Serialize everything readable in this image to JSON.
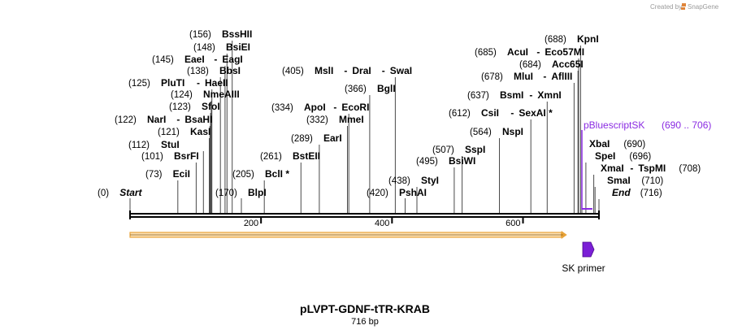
{
  "plasmid": {
    "name": "pLVPT-GDNF-tTR-KRAB",
    "length_label": "716 bp",
    "length": 716
  },
  "credit": {
    "text": "Created by",
    "brand": "SnapGene"
  },
  "colors": {
    "feature": "#8a2be2",
    "primer": "#7b1fd6",
    "orf": "#e8a33a",
    "line": "#000000"
  },
  "ticks": [
    {
      "pos": 200,
      "label": "200"
    },
    {
      "pos": 400,
      "label": "400"
    },
    {
      "pos": 600,
      "label": "600"
    }
  ],
  "enzymes": [
    {
      "pos": 156,
      "pos_label": "(156)",
      "names": [
        "BssHII"
      ]
    },
    {
      "pos": 148,
      "pos_label": "(148)",
      "names": [
        "BsiEI"
      ]
    },
    {
      "pos": 145,
      "pos_label": "(145)",
      "names": [
        "EaeI",
        "EagI"
      ]
    },
    {
      "pos": 138,
      "pos_label": "(138)",
      "names": [
        "BbsI"
      ]
    },
    {
      "pos": 125,
      "pos_label": "(125)",
      "names": [
        "PluTI",
        "HaeII"
      ]
    },
    {
      "pos": 124,
      "pos_label": "(124)",
      "names": [
        "NmeAIII"
      ]
    },
    {
      "pos": 123,
      "pos_label": "(123)",
      "names": [
        "SfoI"
      ]
    },
    {
      "pos": 122,
      "pos_label": "(122)",
      "names": [
        "NarI",
        "BsaHI"
      ]
    },
    {
      "pos": 121,
      "pos_label": "(121)",
      "names": [
        "KasI"
      ]
    },
    {
      "pos": 112,
      "pos_label": "(112)",
      "names": [
        "StuI"
      ]
    },
    {
      "pos": 101,
      "pos_label": "(101)",
      "names": [
        "BsrFI"
      ]
    },
    {
      "pos": 73,
      "pos_label": "(73)",
      "names": [
        "EciI"
      ]
    },
    {
      "pos": 0,
      "pos_label": "(0)",
      "names": [
        "Start"
      ],
      "italic": true
    },
    {
      "pos": 170,
      "pos_label": "(170)",
      "names": [
        "BlpI"
      ]
    },
    {
      "pos": 205,
      "pos_label": "(205)",
      "names": [
        "BclI *"
      ]
    },
    {
      "pos": 261,
      "pos_label": "(261)",
      "names": [
        "BstEII"
      ]
    },
    {
      "pos": 289,
      "pos_label": "(289)",
      "names": [
        "EarI"
      ]
    },
    {
      "pos": 332,
      "pos_label": "(332)",
      "names": [
        "MmeI"
      ]
    },
    {
      "pos": 334,
      "pos_label": "(334)",
      "names": [
        "ApoI",
        "EcoRI"
      ]
    },
    {
      "pos": 366,
      "pos_label": "(366)",
      "names": [
        "BglI"
      ]
    },
    {
      "pos": 405,
      "pos_label": "(405)",
      "names": [
        "MslI",
        "DraI",
        "SwaI"
      ]
    },
    {
      "pos": 420,
      "pos_label": "(420)",
      "names": [
        "PshAI"
      ]
    },
    {
      "pos": 438,
      "pos_label": "(438)",
      "names": [
        "StyI"
      ]
    },
    {
      "pos": 495,
      "pos_label": "(495)",
      "names": [
        "BsiWI"
      ]
    },
    {
      "pos": 507,
      "pos_label": "(507)",
      "names": [
        "SspI"
      ]
    },
    {
      "pos": 564,
      "pos_label": "(564)",
      "names": [
        "NspI"
      ]
    },
    {
      "pos": 612,
      "pos_label": "(612)",
      "names": [
        "CsiI",
        "SexAI *"
      ]
    },
    {
      "pos": 637,
      "pos_label": "(637)",
      "names": [
        "BsmI",
        "XmnI"
      ]
    },
    {
      "pos": 678,
      "pos_label": "(678)",
      "names": [
        "MluI",
        "AflIII"
      ]
    },
    {
      "pos": 684,
      "pos_label": "(684)",
      "names": [
        "Acc65I"
      ]
    },
    {
      "pos": 685,
      "pos_label": "(685)",
      "names": [
        "AcuI",
        "Eco57MI"
      ]
    },
    {
      "pos": 688,
      "pos_label": "(688)",
      "names": [
        "KpnI"
      ]
    },
    {
      "pos": 690,
      "pos_label": "(690)",
      "names": [
        "XbaI"
      ],
      "side": "right"
    },
    {
      "pos": 696,
      "pos_label": "(696)",
      "names": [
        "SpeI"
      ],
      "side": "right"
    },
    {
      "pos": 708,
      "pos_label": "(708)",
      "names": [
        "XmaI",
        "TspMI"
      ],
      "side": "right"
    },
    {
      "pos": 710,
      "pos_label": "(710)",
      "names": [
        "SmaI"
      ],
      "side": "right"
    },
    {
      "pos": 716,
      "pos_label": "(716)",
      "names": [
        "End"
      ],
      "side": "right",
      "italic": true
    }
  ],
  "features": [
    {
      "name": "pBluescriptSK",
      "range_label": "(690 .. 706)",
      "start": 690,
      "end": 706
    }
  ],
  "orf": {
    "start": 0,
    "end": 666,
    "direction": "forward"
  },
  "primers": [
    {
      "name": "SK primer",
      "start": 690,
      "end": 706,
      "direction": "forward"
    }
  ]
}
